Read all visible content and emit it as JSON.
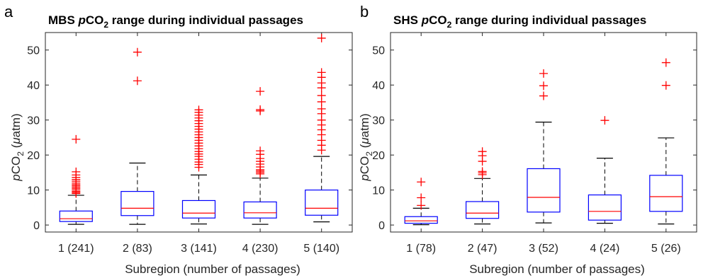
{
  "colors": {
    "box": "#0000ff",
    "median": "#ff0000",
    "outlier": "#ff0000",
    "whisker": "#000000",
    "axis": "#262626"
  },
  "chart_data": [
    {
      "type": "box",
      "panel_letter": "a",
      "title_parts": {
        "pre": "MBS  ",
        "italic": "p",
        "mid": "CO",
        "sub": "2",
        "post": " range during individual passages"
      },
      "xlabel": "Subregion (number of passages)",
      "ylabel_parts": {
        "italic": "p",
        "mid": "CO",
        "sub": "2",
        "post": " (",
        "mu": "μ",
        "end": "atm)"
      },
      "ylim": [
        -2,
        55
      ],
      "yticks": [
        0,
        10,
        20,
        30,
        40,
        50
      ],
      "categories": [
        "1 (241)",
        "2 (83)",
        "3 (141)",
        "4 (230)",
        "5 (140)"
      ],
      "boxes": [
        {
          "whisker_low": 0.2,
          "q1": 1.0,
          "median": 1.8,
          "q3": 4.0,
          "whisker_high": 8.5,
          "outliers": [
            9.0,
            9.3,
            9.6,
            10.0,
            10.4,
            10.8,
            11.2,
            11.6,
            12.0,
            12.5,
            13.0,
            13.6,
            14.3,
            15.2,
            24.5
          ]
        },
        {
          "whisker_low": 0.2,
          "q1": 2.7,
          "median": 4.8,
          "q3": 9.6,
          "whisker_high": 17.7,
          "outliers": [
            41.2,
            49.4
          ]
        },
        {
          "whisker_low": 0.3,
          "q1": 2.0,
          "median": 3.4,
          "q3": 7.0,
          "whisker_high": 14.3,
          "outliers": [
            16.5,
            17.3,
            18.0,
            18.8,
            19.6,
            20.3,
            21.0,
            21.8,
            22.6,
            23.4,
            24.2,
            25.0,
            25.8,
            26.6,
            27.4,
            28.2,
            29.0,
            29.8,
            30.6,
            31.4,
            32.2,
            32.9
          ]
        },
        {
          "whisker_low": 0.2,
          "q1": 2.0,
          "median": 3.5,
          "q3": 6.6,
          "whisker_high": 13.4,
          "outliers": [
            14.6,
            15.0,
            15.4,
            15.8,
            16.6,
            17.4,
            18.2,
            19.0,
            20.2,
            21.2,
            32.6,
            33.0,
            38.2
          ]
        },
        {
          "whisker_low": 0.9,
          "q1": 2.8,
          "median": 4.8,
          "q3": 10.0,
          "whisker_high": 19.6,
          "outliers": [
            21.4,
            22.8,
            24.2,
            25.8,
            27.2,
            28.6,
            30.0,
            31.8,
            33.2,
            35.2,
            37.0,
            39.2,
            40.6,
            42.2,
            43.6,
            53.4
          ]
        }
      ]
    },
    {
      "type": "box",
      "panel_letter": "b",
      "title_parts": {
        "pre": "SHS  ",
        "italic": "p",
        "mid": "CO",
        "sub": "2",
        "post": " range during individual passages"
      },
      "xlabel": "Subregion (number of passages)",
      "ylabel_parts": {
        "italic": "p",
        "mid": "CO",
        "sub": "2",
        "post": " (",
        "mu": "μ",
        "end": "atm)"
      },
      "ylim": [
        -2,
        55
      ],
      "yticks": [
        0,
        10,
        20,
        30,
        40,
        50
      ],
      "categories": [
        "1 (78)",
        "2 (47)",
        "3 (52)",
        "4 (24)",
        "5 (26)"
      ],
      "boxes": [
        {
          "whisker_low": 0.1,
          "q1": 0.5,
          "median": 1.2,
          "q3": 2.4,
          "whisker_high": 4.8,
          "outliers": [
            5.6,
            7.8,
            12.3
          ]
        },
        {
          "whisker_low": 0.3,
          "q1": 1.9,
          "median": 3.4,
          "q3": 6.7,
          "whisker_high": 13.3,
          "outliers": [
            14.4,
            14.9,
            15.3,
            18.2,
            19.8,
            21.0
          ]
        },
        {
          "whisker_low": 0.6,
          "q1": 3.7,
          "median": 7.9,
          "q3": 16.1,
          "whisker_high": 29.4,
          "outliers": [
            36.9,
            39.8,
            43.3
          ]
        },
        {
          "whisker_low": 0.5,
          "q1": 1.4,
          "median": 3.9,
          "q3": 8.6,
          "whisker_high": 19.1,
          "outliers": [
            29.9
          ]
        },
        {
          "whisker_low": 0.3,
          "q1": 3.9,
          "median": 8.1,
          "q3": 14.2,
          "whisker_high": 24.9,
          "outliers": [
            39.9,
            46.4
          ]
        }
      ]
    }
  ]
}
